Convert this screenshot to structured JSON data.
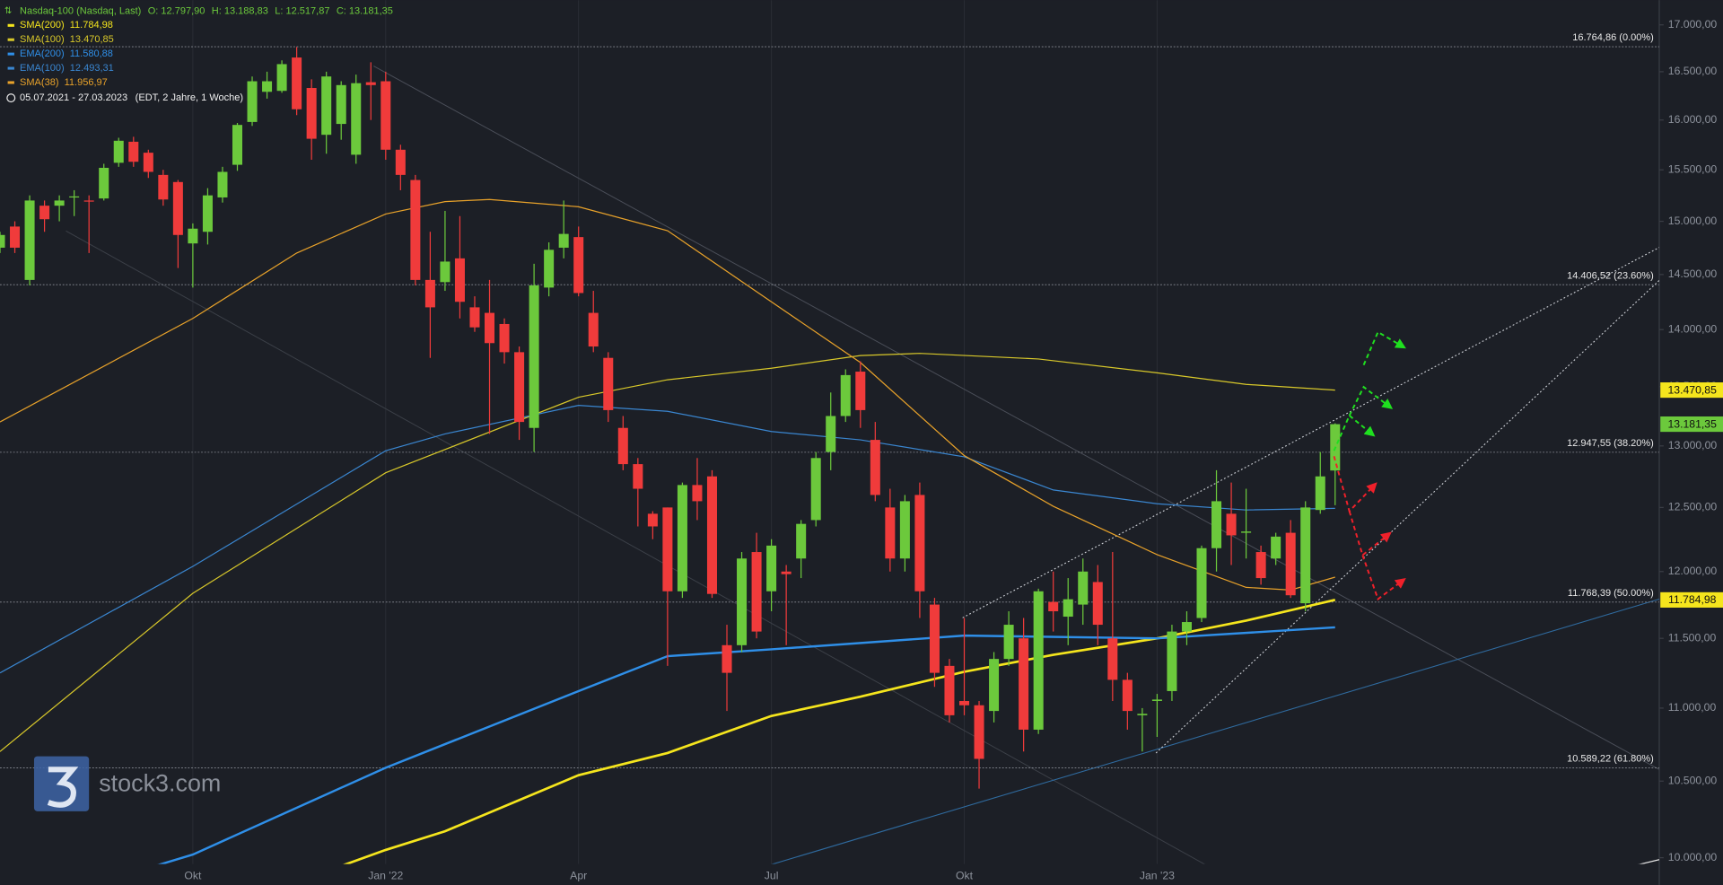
{
  "chart_data": {
    "type": "candlestick",
    "header": {
      "title": "Nasdaq-100 (Nasdaq, Last)",
      "ohlc": [
        "O: 12.797,90",
        "H: 13.188,83",
        "L: 12.517,87",
        "C: 13.181,35"
      ],
      "period": "05.07.2021 - 27.03.2023",
      "period_note": "(EDT, 2 Jahre, 1 Woche)"
    },
    "watermark": "stock3.com",
    "log_y": true,
    "grid": true,
    "up_color": "#6cc93c",
    "down_color": "#f03b3b",
    "xlim": [
      0,
      111.85
    ],
    "ylim": [
      9960,
      17270
    ],
    "xticks": [
      {
        "value": 13,
        "label": "Okt"
      },
      {
        "value": 26,
        "label": "Jan '22"
      },
      {
        "value": 39,
        "label": "Apr"
      },
      {
        "value": 52,
        "label": "Jul"
      },
      {
        "value": 65,
        "label": "Okt"
      },
      {
        "value": 78,
        "label": "Jan '23"
      }
    ],
    "yticks": [
      {
        "value": 10000,
        "label": "10.000,00"
      },
      {
        "value": 10500,
        "label": "10.500,00"
      },
      {
        "value": 11000,
        "label": "11.000,00"
      },
      {
        "value": 11500,
        "label": "11.500,00"
      },
      {
        "value": 12000,
        "label": "12.000,00"
      },
      {
        "value": 12500,
        "label": "12.500,00"
      },
      {
        "value": 13000,
        "label": "13.000,00"
      },
      {
        "value": 13500,
        "label": "13.500,00"
      },
      {
        "value": 14000,
        "label": "14.000,00"
      },
      {
        "value": 14500,
        "label": "14.500,00"
      },
      {
        "value": 15000,
        "label": "15.000,00"
      },
      {
        "value": 15500,
        "label": "15.500,00"
      },
      {
        "value": 16000,
        "label": "16.000,00"
      },
      {
        "value": 16500,
        "label": "16.500,00"
      },
      {
        "value": 17000,
        "label": "17.000,00"
      }
    ],
    "candles": {
      "x": [
        0,
        1,
        2,
        3,
        4,
        5,
        6,
        7,
        8,
        9,
        10,
        11,
        12,
        13,
        14,
        15,
        16,
        17,
        18,
        19,
        20,
        21,
        22,
        23,
        24,
        25,
        26,
        27,
        28,
        29,
        30,
        31,
        32,
        33,
        34,
        35,
        36,
        37,
        38,
        39,
        40,
        41,
        42,
        43,
        44,
        45,
        46,
        47,
        48,
        49,
        50,
        51,
        52,
        53,
        54,
        55,
        56,
        57,
        58,
        59,
        60,
        61,
        62,
        63,
        64,
        65,
        66,
        67,
        68,
        69,
        70,
        71,
        72,
        73,
        74,
        75,
        76,
        77,
        78,
        79,
        80,
        81,
        82,
        83,
        84,
        85,
        86,
        87,
        88,
        89,
        90
      ],
      "open": [
        14750,
        14950,
        14450,
        15150,
        15150,
        15230,
        15200,
        15220,
        15570,
        15780,
        15670,
        15450,
        15380,
        14790,
        14900,
        15230,
        15550,
        15980,
        16290,
        16300,
        16650,
        16330,
        15850,
        15960,
        15650,
        16390,
        16400,
        15700,
        15400,
        14450,
        14430,
        14650,
        14200,
        14150,
        14050,
        13800,
        13150,
        14380,
        14750,
        14850,
        14150,
        13750,
        13150,
        12850,
        12450,
        12500,
        11850,
        12680,
        12750,
        11450,
        11450,
        12150,
        11850,
        12000,
        12100,
        12400,
        12950,
        13250,
        13630,
        13050,
        12500,
        12100,
        12600,
        11750,
        11300,
        11050,
        11020,
        10980,
        11350,
        11500,
        10850,
        11770,
        11660,
        11750,
        11920,
        11500,
        11200,
        10950,
        11050,
        11120,
        11550,
        11650,
        12180,
        12450,
        12300,
        12150,
        12100,
        12300,
        11760,
        12480,
        12797.9
      ],
      "high": [
        14900,
        15000,
        15250,
        15200,
        15250,
        15300,
        15250,
        15560,
        15820,
        15830,
        15700,
        15500,
        15400,
        14980,
        15320,
        15530,
        15970,
        16450,
        16500,
        16620,
        16760,
        16420,
        16500,
        16400,
        16470,
        16600,
        16500,
        15750,
        15450,
        14900,
        15100,
        15050,
        14300,
        14450,
        14100,
        13850,
        14600,
        14800,
        15200,
        14950,
        14350,
        13800,
        13250,
        12900,
        12470,
        12500,
        12700,
        12900,
        12800,
        11600,
        12150,
        12300,
        12250,
        12050,
        12400,
        12950,
        13450,
        13650,
        13720,
        13200,
        12650,
        12600,
        12700,
        11800,
        11350,
        11650,
        11050,
        11400,
        11700,
        11650,
        11870,
        12000,
        11950,
        12100,
        12050,
        12150,
        11250,
        11000,
        11100,
        11600,
        11700,
        12200,
        12800,
        12700,
        12650,
        12200,
        12300,
        12400,
        12550,
        12950,
        13188.83
      ],
      "low": [
        14700,
        14700,
        14400,
        14900,
        15000,
        15050,
        14700,
        15200,
        15530,
        15530,
        15420,
        15150,
        14560,
        14380,
        14780,
        15180,
        15490,
        15940,
        16220,
        16280,
        16050,
        15600,
        15660,
        15800,
        15560,
        16000,
        15600,
        15300,
        14400,
        13750,
        14350,
        14100,
        13980,
        13100,
        13700,
        13050,
        12950,
        14300,
        14650,
        14300,
        13800,
        13200,
        12800,
        12350,
        12250,
        11300,
        11800,
        12400,
        11800,
        10980,
        11400,
        11500,
        11700,
        11450,
        11950,
        12350,
        12800,
        13200,
        13150,
        12550,
        12000,
        12000,
        11650,
        11150,
        10900,
        10950,
        10450,
        10900,
        11300,
        10700,
        10820,
        11550,
        11450,
        11600,
        11450,
        11050,
        10850,
        10700,
        10800,
        11050,
        11450,
        11620,
        12000,
        12050,
        12100,
        11900,
        12050,
        11800,
        11700,
        12450,
        12517.87
      ],
      "close": [
        14870,
        14750,
        15200,
        15020,
        15200,
        15240,
        15190,
        15520,
        15790,
        15580,
        15480,
        15210,
        14870,
        14930,
        15250,
        15480,
        15950,
        16400,
        16400,
        16580,
        16110,
        15810,
        16450,
        16360,
        16380,
        16360,
        15700,
        15450,
        14450,
        14200,
        14620,
        14250,
        14020,
        13880,
        13800,
        13200,
        14400,
        14730,
        14880,
        14330,
        13850,
        13300,
        12850,
        12650,
        12350,
        11850,
        12680,
        12550,
        11830,
        11250,
        12100,
        11550,
        12200,
        11980,
        12370,
        12900,
        13250,
        13600,
        13300,
        12600,
        12100,
        12550,
        11850,
        11250,
        10950,
        11020,
        10650,
        11350,
        11600,
        10850,
        11850,
        11700,
        11790,
        12000,
        11600,
        11200,
        10980,
        10960,
        11060,
        11550,
        11620,
        12180,
        12550,
        12280,
        12310,
        11950,
        12270,
        11820,
        12500,
        12750,
        13181.35
      ]
    },
    "overlays": [
      {
        "name": "SMA(200)",
        "legend_value": "11.784,98",
        "color": "#f5e51d",
        "x": [
          21,
          26,
          30,
          39,
          45,
          52,
          58,
          65,
          71,
          78,
          84,
          90
        ],
        "values": [
          9880,
          10050,
          10170,
          10540,
          10690,
          10945,
          11080,
          11258,
          11380,
          11500,
          11630,
          11784.98
        ]
      },
      {
        "name": "SMA(100)",
        "legend_value": "13.470,85",
        "color": "#d8c82a",
        "x": [
          0,
          13,
          26,
          39,
          45,
          52,
          58,
          62,
          70,
          78,
          84,
          90
        ],
        "values": [
          10700,
          11835,
          12780,
          13410,
          13560,
          13660,
          13770,
          13790,
          13740,
          13620,
          13520,
          13470.85
        ]
      },
      {
        "name": "EMA(200)",
        "legend_value": "11.580,88",
        "color": "#2f8fe8",
        "x": [
          7,
          13,
          26,
          39,
          45,
          52,
          65,
          78,
          90
        ],
        "values": [
          9850,
          10020,
          10590,
          11120,
          11370,
          11420,
          11520,
          11500,
          11580.88
        ]
      },
      {
        "name": "EMA(100)",
        "legend_value": "12.493,31",
        "color": "#3a86d0",
        "x": [
          0,
          13,
          26,
          30,
          39,
          45,
          52,
          58,
          65,
          71,
          78,
          84,
          90
        ],
        "values": [
          11250,
          12040,
          12960,
          13100,
          13340,
          13290,
          13120,
          13050,
          12910,
          12640,
          12530,
          12480,
          12493.31
        ]
      },
      {
        "name": "SMA(38)",
        "legend_value": "11.956,97",
        "color": "#e8a22a",
        "x": [
          0,
          13,
          20,
          26,
          30,
          33,
          39,
          45,
          52,
          58,
          65,
          71,
          78,
          84,
          87,
          90
        ],
        "values": [
          13200,
          14100,
          14700,
          15070,
          15190,
          15210,
          15140,
          14910,
          14250,
          13710,
          12920,
          12510,
          12130,
          11880,
          11860,
          11956.97
        ]
      }
    ],
    "fib_levels": [
      {
        "value": 16764.86,
        "label": "16.764,86 (0.00%)"
      },
      {
        "value": 14406.52,
        "label": "14.406,52 (23.60%)"
      },
      {
        "value": 12947.55,
        "label": "12.947,55 (38.20%)"
      },
      {
        "value": 11768.39,
        "label": "11.768,39 (50.00%)"
      },
      {
        "value": 10589.22,
        "label": "10.589,22 (61.80%)"
      }
    ],
    "price_tags": [
      {
        "value": 13470.85,
        "label": "13.470,85",
        "color": "#f5e51d"
      },
      {
        "value": 13181.35,
        "label": "13.181,35",
        "color": "#6cc93c"
      },
      {
        "value": 11784.98,
        "label": "11.784,98",
        "color": "#f5e51d"
      }
    ]
  }
}
